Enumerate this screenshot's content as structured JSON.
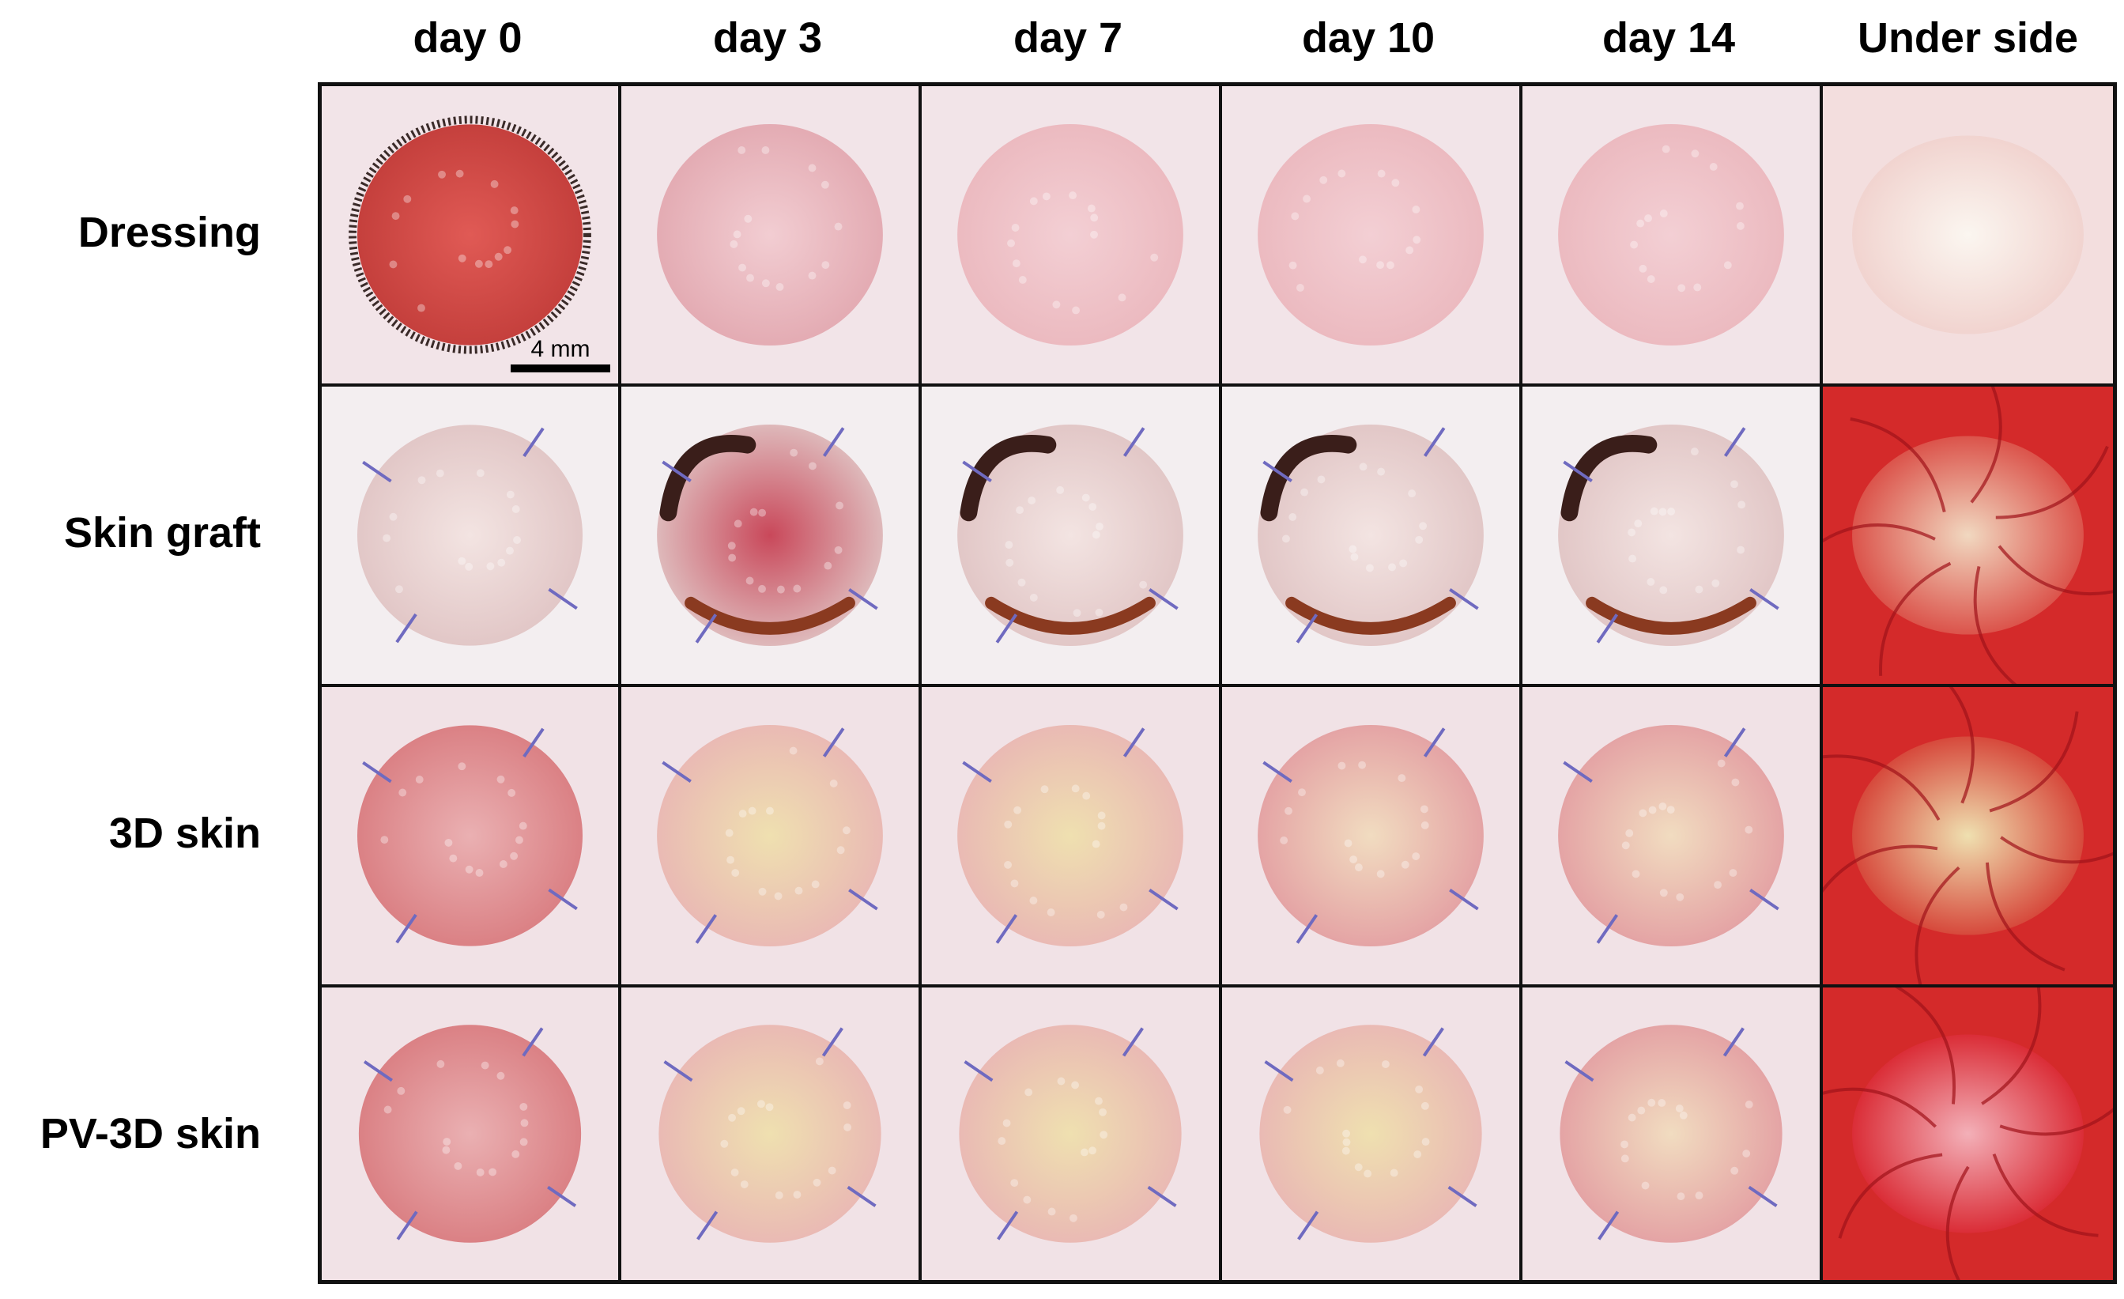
{
  "column_headers": [
    "day 0",
    "day 3",
    "day 7",
    "day 10",
    "day 14",
    "Under side"
  ],
  "row_labels": [
    "Dressing",
    "Skin graft",
    "3D skin",
    "PV-3D skin"
  ],
  "scale_bar": {
    "label": "4 mm"
  },
  "colors": {
    "skin_background": "#f2e4e8",
    "wound_red": "#d9534f",
    "granulation_pink": "#e8a8a8",
    "scab_dark": "#3a1e1a",
    "suture_blue": "#6f6ac0",
    "underside_red": "#d42a2a",
    "healed_yellow": "#efe0b0"
  },
  "cells": [
    [
      "wound-open-red",
      "wound-pale-pink",
      "wound-pink-healing",
      "wound-pink-healing",
      "wound-pink-healing",
      "underside-white"
    ],
    [
      "graft-sutured",
      "graft-red-scab",
      "graft-dark-scab",
      "graft-dark-scab",
      "graft-dark-scab",
      "underside-red-vessels"
    ],
    [
      "scaffold-clear-sutured",
      "scaffold-yellow",
      "scaffold-yellow",
      "scaffold-pink-yellow",
      "scaffold-pink-yellow",
      "underside-red-yellow"
    ],
    [
      "scaffold-clear-sutured",
      "scaffold-yellow",
      "scaffold-yellow",
      "scaffold-yellow",
      "scaffold-pink-yellow",
      "underside-red"
    ]
  ]
}
